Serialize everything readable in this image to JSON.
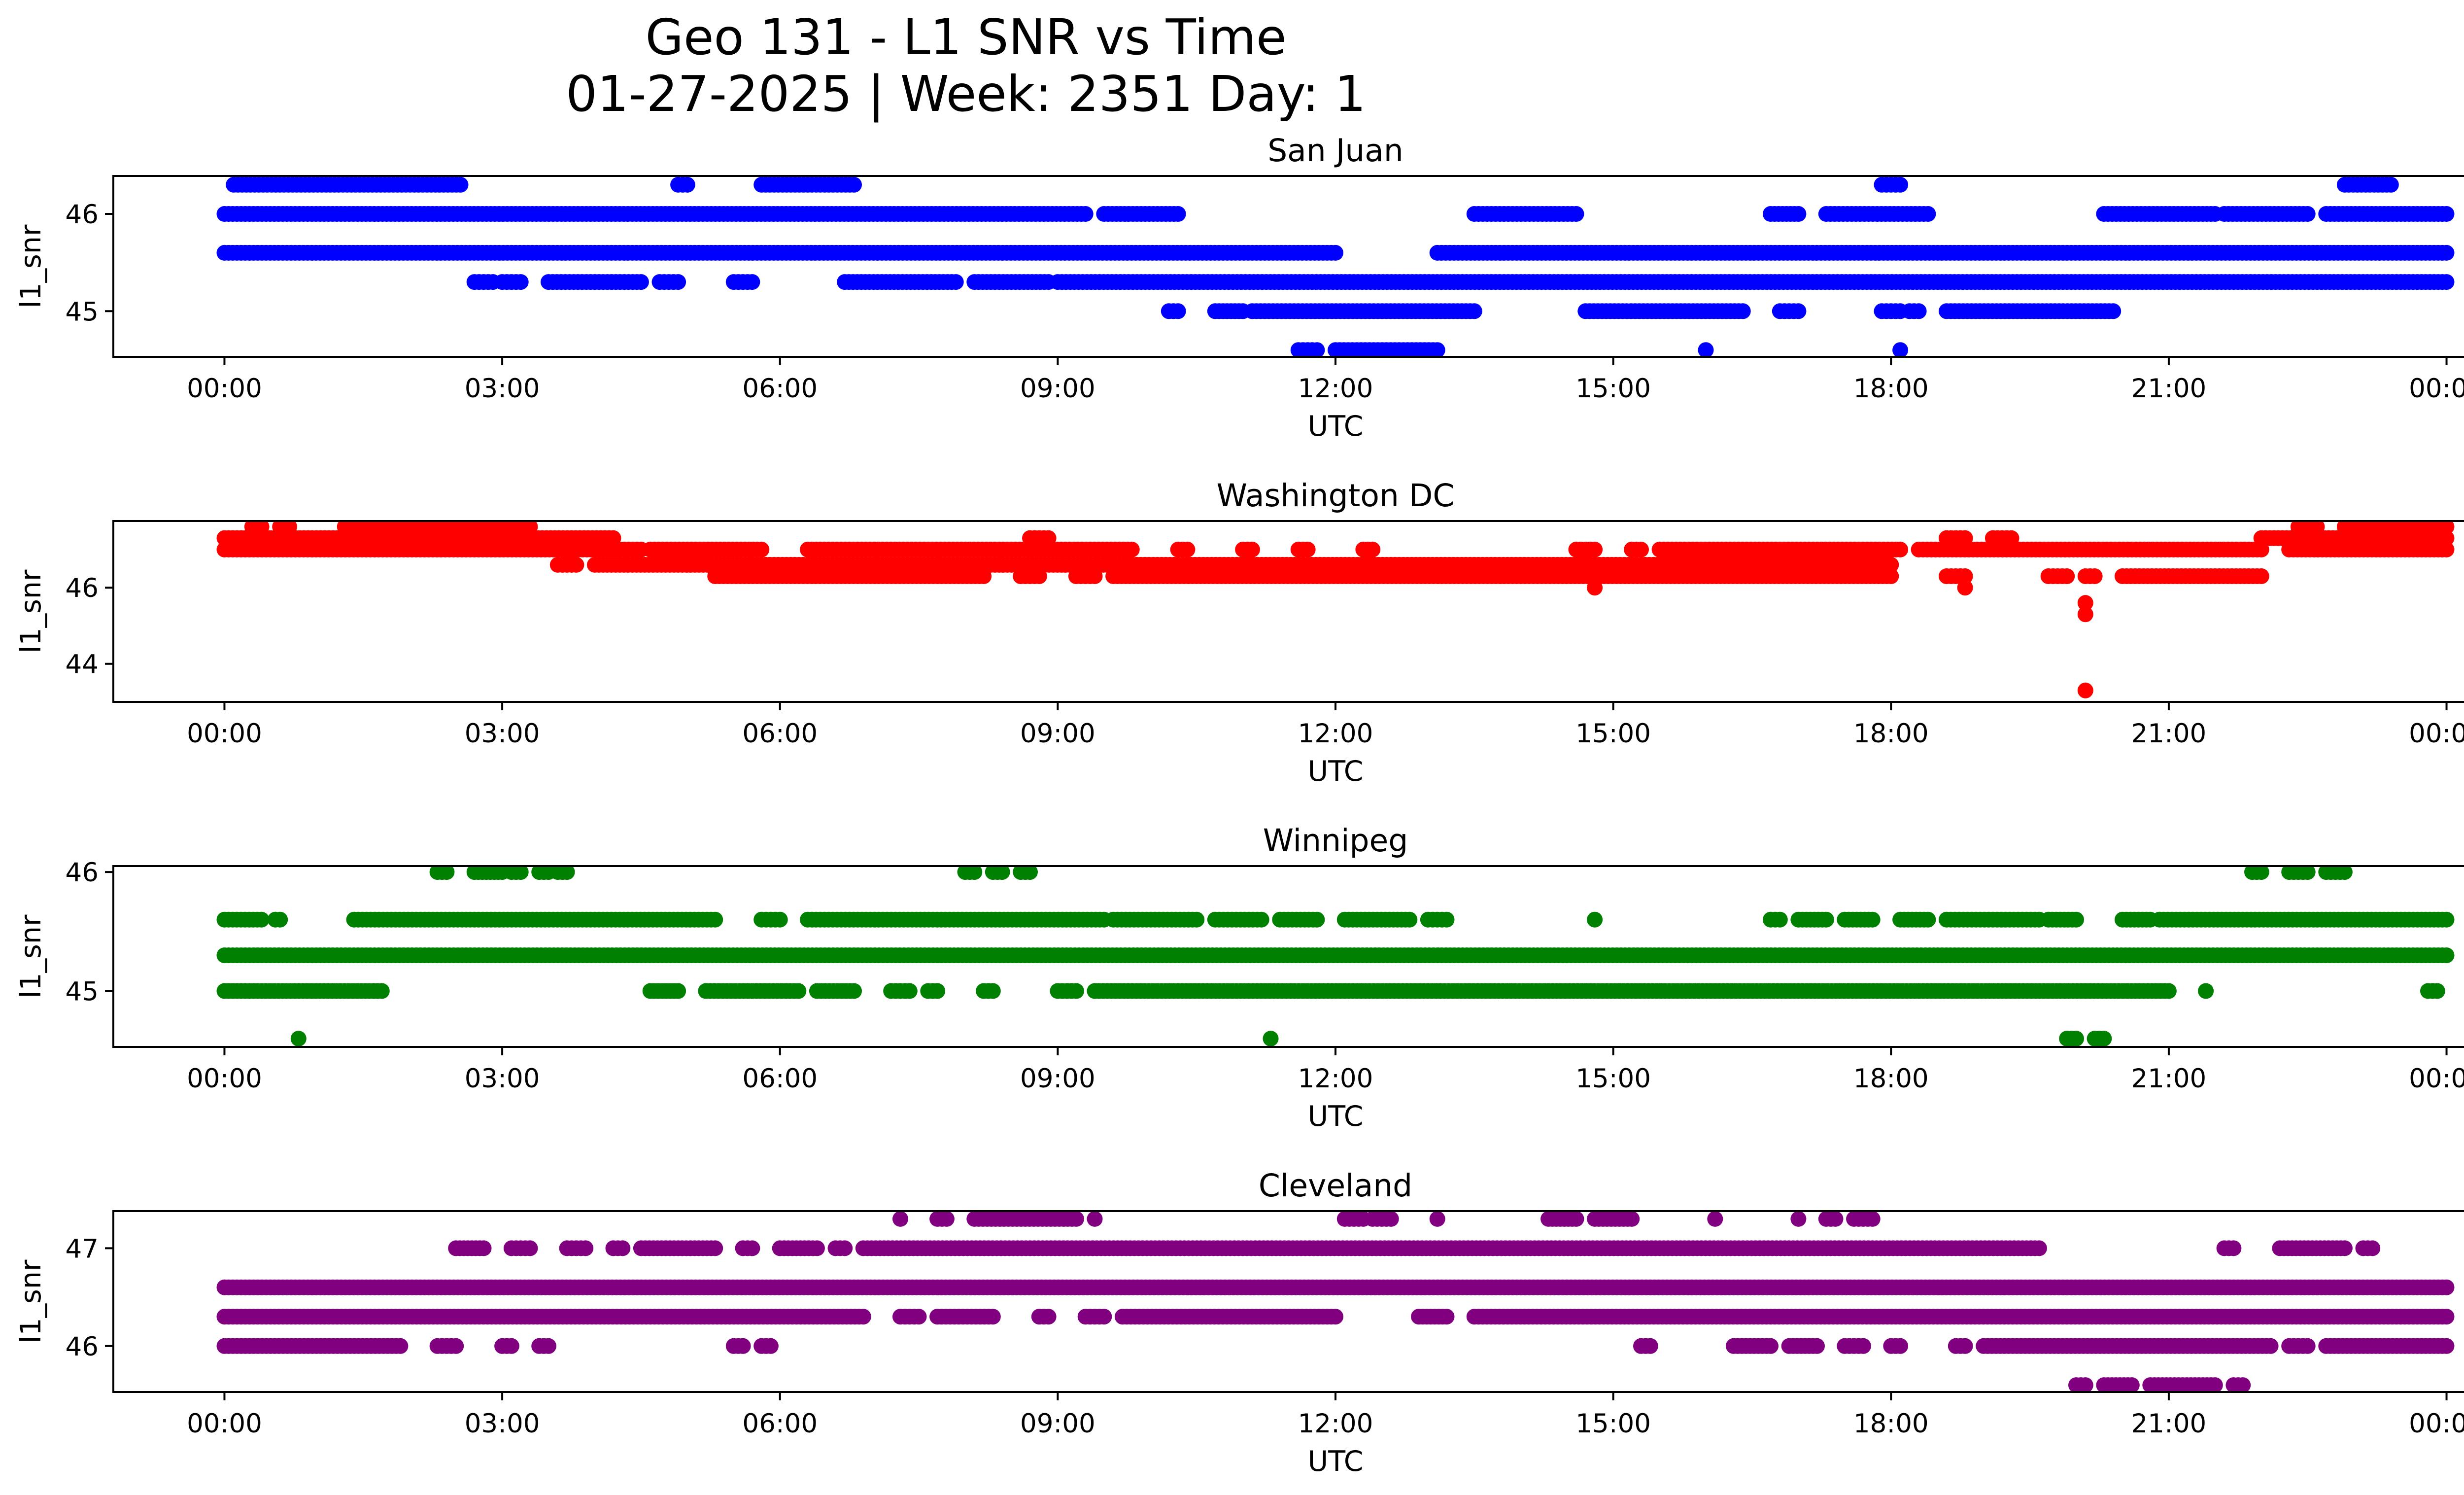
{
  "figure": {
    "title_line1": "Geo 131 - L1 SNR vs Time",
    "title_line2": "01-27-2025 | Week: 2351 Day: 1"
  },
  "chart_data": [
    {
      "type": "scatter",
      "title": "San Juan",
      "xlabel": "UTC",
      "ylabel": "l1_snr",
      "color": "#0000ff",
      "xticks": [
        "00:00",
        "03:00",
        "06:00",
        "09:00",
        "12:00",
        "15:00",
        "18:00",
        "21:00",
        "00:00"
      ],
      "yticks": [
        45,
        46
      ],
      "xlim": [
        -1.2,
        25.2
      ],
      "ylim": [
        44.53,
        46.39
      ],
      "levels": [
        {
          "y": 46.3,
          "segments": [
            [
              0.1,
              2.55
            ],
            [
              4.9,
              5.0
            ],
            [
              5.8,
              6.8
            ],
            [
              17.9,
              18.1
            ],
            [
              22.9,
              23.4
            ]
          ]
        },
        {
          "y": 46.0,
          "segments": [
            [
              0.0,
              9.3
            ],
            [
              9.5,
              10.3
            ],
            [
              13.5,
              14.6
            ],
            [
              16.7,
              17.0
            ],
            [
              17.3,
              18.4
            ],
            [
              20.3,
              21.5
            ],
            [
              21.6,
              22.5
            ],
            [
              22.7,
              24.0
            ]
          ]
        },
        {
          "y": 45.6,
          "segments": [
            [
              0.0,
              12.0
            ],
            [
              13.1,
              24.0
            ]
          ]
        },
        {
          "y": 45.3,
          "segments": [
            [
              2.7,
              2.9
            ],
            [
              3.0,
              3.2
            ],
            [
              3.5,
              4.5
            ],
            [
              4.7,
              4.9
            ],
            [
              5.5,
              5.7
            ],
            [
              6.7,
              7.9
            ],
            [
              8.1,
              8.9
            ],
            [
              9.0,
              24.0
            ]
          ]
        },
        {
          "y": 45.0,
          "segments": [
            [
              10.2,
              10.3
            ],
            [
              10.7,
              11.0
            ],
            [
              11.1,
              13.5
            ],
            [
              14.7,
              16.4
            ],
            [
              16.8,
              17.0
            ],
            [
              17.9,
              18.1
            ],
            [
              18.2,
              18.3
            ],
            [
              18.6,
              20.4
            ]
          ]
        },
        {
          "y": 44.6,
          "segments": [
            [
              11.6,
              11.8
            ],
            [
              12.0,
              13.1
            ],
            [
              16.0,
              16.0
            ],
            [
              18.1,
              18.1
            ]
          ]
        }
      ]
    },
    {
      "type": "scatter",
      "title": "Washington DC",
      "xlabel": "UTC",
      "ylabel": "l1_snr",
      "color": "#ff0000",
      "xticks": [
        "00:00",
        "03:00",
        "06:00",
        "09:00",
        "12:00",
        "15:00",
        "18:00",
        "21:00",
        "00:00"
      ],
      "yticks": [
        44,
        46
      ],
      "xlim": [
        -1.2,
        25.2
      ],
      "ylim": [
        43.0,
        47.75
      ],
      "levels": [
        {
          "y": 47.6,
          "segments": [
            [
              0.3,
              0.4
            ],
            [
              0.6,
              0.7
            ],
            [
              1.3,
              1.4
            ],
            [
              1.5,
              3.3
            ],
            [
              22.4,
              22.6
            ],
            [
              22.9,
              24.0
            ]
          ]
        },
        {
          "y": 47.3,
          "segments": [
            [
              0.0,
              4.2
            ],
            [
              8.7,
              8.9
            ],
            [
              18.6,
              18.8
            ],
            [
              19.1,
              19.3
            ],
            [
              22.0,
              24.0
            ]
          ]
        },
        {
          "y": 47.0,
          "segments": [
            [
              0.0,
              4.5
            ],
            [
              4.6,
              5.8
            ],
            [
              6.3,
              9.8
            ],
            [
              10.3,
              10.4
            ],
            [
              11.0,
              11.1
            ],
            [
              11.6,
              11.7
            ],
            [
              12.3,
              12.4
            ],
            [
              14.6,
              14.8
            ],
            [
              15.2,
              15.3
            ],
            [
              15.5,
              18.1
            ],
            [
              18.3,
              22.0
            ],
            [
              22.3,
              24.0
            ]
          ]
        },
        {
          "y": 46.6,
          "segments": [
            [
              3.6,
              3.8
            ]
          ]
        },
        {
          "y": 46.6,
          "segments": [
            [
              4.0,
              18.0
            ]
          ]
        },
        {
          "y": 46.3,
          "segments": [
            [
              5.3,
              8.2
            ],
            [
              8.6,
              8.8
            ],
            [
              9.2,
              9.4
            ],
            [
              9.6,
              18.0
            ],
            [
              18.6,
              18.8
            ],
            [
              19.7,
              19.9
            ],
            [
              20.1,
              20.2
            ],
            [
              20.5,
              22.0
            ]
          ]
        },
        {
          "y": 46.0,
          "segments": [
            [
              14.8,
              14.8
            ],
            [
              18.8,
              18.8
            ]
          ]
        },
        {
          "y": 45.6,
          "segments": [
            [
              20.1,
              20.1
            ]
          ]
        },
        {
          "y": 45.3,
          "segments": [
            [
              20.1,
              20.1
            ]
          ]
        },
        {
          "y": 43.3,
          "segments": [
            [
              20.1,
              20.1
            ]
          ]
        }
      ]
    },
    {
      "type": "scatter",
      "title": "Winnipeg",
      "xlabel": "UTC",
      "ylabel": "l1_snr",
      "color": "#008000",
      "xticks": [
        "00:00",
        "03:00",
        "06:00",
        "09:00",
        "12:00",
        "15:00",
        "18:00",
        "21:00",
        "00:00"
      ],
      "yticks": [
        45,
        46
      ],
      "xlim": [
        -1.2,
        25.2
      ],
      "ylim": [
        44.53,
        46.05
      ],
      "levels": [
        {
          "y": 46.0,
          "segments": [
            [
              2.3,
              2.4
            ],
            [
              2.7,
              3.0
            ],
            [
              3.1,
              3.2
            ],
            [
              3.4,
              3.5
            ],
            [
              3.6,
              3.7
            ],
            [
              8.0,
              8.1
            ],
            [
              8.3,
              8.4
            ],
            [
              8.6,
              8.7
            ],
            [
              21.9,
              22.0
            ],
            [
              22.3,
              22.5
            ],
            [
              22.7,
              22.9
            ]
          ]
        },
        {
          "y": 45.6,
          "segments": [
            [
              0.0,
              0.4
            ],
            [
              0.55,
              0.6
            ],
            [
              1.4,
              5.3
            ],
            [
              5.8,
              6.0
            ],
            [
              6.3,
              9.5
            ],
            [
              9.6,
              10.5
            ],
            [
              10.7,
              11.2
            ],
            [
              11.4,
              11.8
            ],
            [
              12.1,
              12.8
            ],
            [
              13.0,
              13.2
            ],
            [
              14.8,
              14.8
            ],
            [
              16.7,
              16.8
            ],
            [
              17.0,
              17.3
            ],
            [
              17.5,
              17.8
            ],
            [
              18.1,
              18.4
            ],
            [
              18.6,
              19.6
            ],
            [
              19.7,
              20.0
            ],
            [
              20.5,
              20.8
            ],
            [
              20.9,
              24.0
            ]
          ]
        },
        {
          "y": 45.3,
          "segments": [
            [
              0.0,
              24.0
            ]
          ]
        },
        {
          "y": 45.0,
          "segments": [
            [
              0.0,
              1.7
            ],
            [
              4.6,
              4.9
            ],
            [
              5.2,
              6.2
            ],
            [
              6.4,
              6.8
            ],
            [
              7.2,
              7.4
            ],
            [
              7.6,
              7.7
            ],
            [
              8.2,
              8.3
            ],
            [
              9.0,
              9.2
            ],
            [
              9.4,
              21.0
            ],
            [
              21.4,
              21.4
            ],
            [
              23.8,
              23.9
            ]
          ]
        },
        {
          "y": 44.6,
          "segments": [
            [
              0.8,
              0.8
            ],
            [
              11.3,
              11.3
            ],
            [
              19.9,
              20.0
            ],
            [
              20.2,
              20.3
            ]
          ]
        }
      ]
    },
    {
      "type": "scatter",
      "title": "Cleveland",
      "xlabel": "UTC",
      "ylabel": "l1_snr",
      "color": "#800080",
      "xticks": [
        "00:00",
        "03:00",
        "06:00",
        "09:00",
        "12:00",
        "15:00",
        "18:00",
        "21:00",
        "00:00"
      ],
      "yticks": [
        46,
        47
      ],
      "xlim": [
        -1.2,
        25.2
      ],
      "ylim": [
        45.53,
        47.38
      ],
      "levels": [
        {
          "y": 47.3,
          "segments": [
            [
              7.3,
              7.3
            ],
            [
              7.7,
              7.8
            ],
            [
              8.1,
              9.2
            ],
            [
              9.4,
              9.4
            ],
            [
              12.1,
              12.3
            ],
            [
              12.4,
              12.6
            ],
            [
              13.1,
              13.1
            ],
            [
              14.3,
              14.6
            ],
            [
              14.8,
              15.2
            ],
            [
              16.1,
              16.1
            ],
            [
              17.0,
              17.0
            ],
            [
              17.3,
              17.4
            ],
            [
              17.6,
              17.8
            ]
          ]
        },
        {
          "y": 47.0,
          "segments": [
            [
              2.5,
              2.8
            ],
            [
              3.1,
              3.3
            ],
            [
              3.7,
              3.9
            ],
            [
              4.2,
              4.3
            ],
            [
              4.5,
              5.3
            ],
            [
              5.6,
              5.7
            ],
            [
              6.0,
              6.4
            ],
            [
              6.6,
              6.7
            ],
            [
              6.9,
              19.6
            ],
            [
              21.6,
              21.7
            ],
            [
              22.2,
              22.9
            ],
            [
              23.1,
              23.2
            ]
          ]
        },
        {
          "y": 46.6,
          "segments": [
            [
              0.0,
              24.0
            ]
          ]
        },
        {
          "y": 46.3,
          "segments": [
            [
              0.0,
              6.9
            ],
            [
              7.3,
              7.5
            ],
            [
              7.7,
              8.3
            ],
            [
              8.8,
              8.9
            ],
            [
              9.3,
              9.5
            ],
            [
              9.7,
              12.0
            ],
            [
              12.9,
              13.2
            ],
            [
              13.5,
              24.0
            ]
          ]
        },
        {
          "y": 46.0,
          "segments": [
            [
              0.0,
              1.9
            ],
            [
              2.3,
              2.5
            ],
            [
              3.0,
              3.1
            ],
            [
              3.4,
              3.5
            ],
            [
              5.5,
              5.6
            ],
            [
              5.8,
              5.9
            ],
            [
              15.3,
              15.4
            ],
            [
              16.3,
              16.7
            ],
            [
              16.9,
              17.2
            ],
            [
              17.5,
              17.7
            ],
            [
              18.0,
              18.1
            ],
            [
              18.7,
              18.8
            ],
            [
              19.0,
              22.1
            ],
            [
              22.3,
              22.5
            ],
            [
              22.7,
              24.0
            ]
          ]
        },
        {
          "y": 45.6,
          "segments": [
            [
              20.0,
              20.1
            ],
            [
              20.3,
              20.6
            ],
            [
              20.8,
              21.5
            ],
            [
              21.7,
              21.8
            ]
          ]
        }
      ]
    }
  ]
}
